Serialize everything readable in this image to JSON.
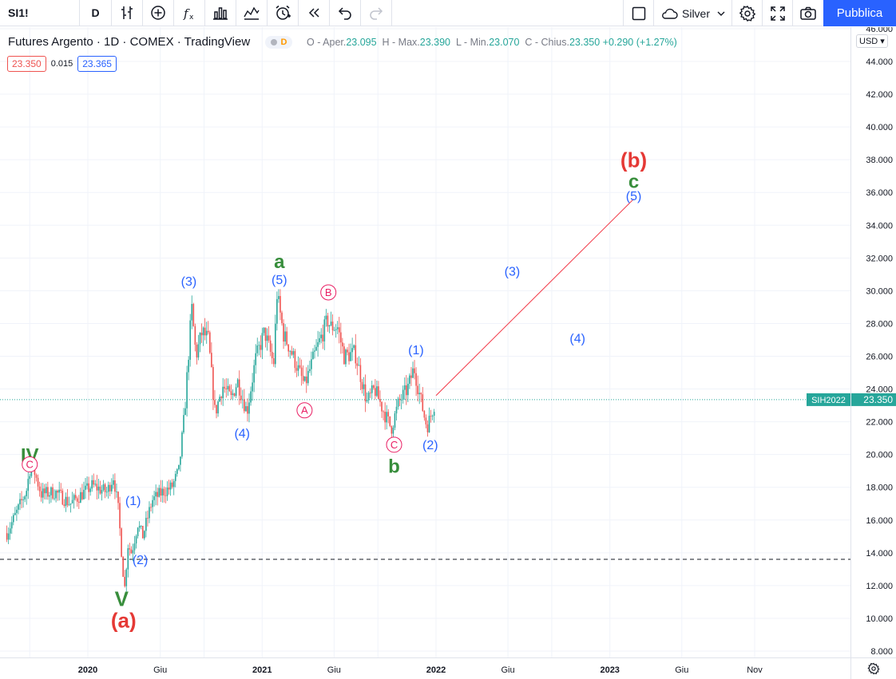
{
  "toolbar": {
    "symbol": "SI1!",
    "interval": "D",
    "icons": [
      "bar-style-icon",
      "add-indicator-plus-icon",
      "fx-indicators-icon",
      "templates-icon",
      "compare-icon",
      "alert-icon",
      "replay-icon",
      "undo-icon",
      "redo-icon"
    ],
    "layout_name": "Silver",
    "publish_label": "Pubblica"
  },
  "legend": {
    "title": "Futures Argento · 1D · COMEX · TradingView",
    "badge_letter": "D",
    "open_label": "O",
    "open_name": "Aper.",
    "open": "23.095",
    "high_label": "H",
    "high_name": "Max.",
    "high": "23.390",
    "low_label": "L",
    "low_name": "Min.",
    "low": "23.070",
    "close_label": "C",
    "close_name": "Chius.",
    "close": "23.350",
    "change": "+0.290 (+1.27%)",
    "bid": "23.350",
    "spread": "0.015",
    "ask": "23.365"
  },
  "price_axis": {
    "currency": "USD",
    "ticks": [
      "46.000",
      "44.000",
      "42.000",
      "40.000",
      "38.000",
      "36.000",
      "34.000",
      "32.000",
      "30.000",
      "28.000",
      "26.000",
      "24.000",
      "22.000",
      "20.000",
      "18.000",
      "16.000",
      "14.000",
      "12.000",
      "10.000",
      "8.000"
    ],
    "last_symbol": "SIH2022",
    "last_price": "23.350"
  },
  "time_axis": {
    "labels": [
      "2020",
      "Giu",
      "2021",
      "Giu",
      "2022",
      "Giu",
      "2023",
      "Giu",
      "Nov"
    ]
  },
  "colors": {
    "up": "#26a69a",
    "down": "#ef5350",
    "wave_blue": "#2962ff",
    "wave_green": "#388e3c",
    "wave_red": "#e53935",
    "wave_pink": "#e91e63",
    "projection": "#f23645"
  },
  "chart_data": {
    "type": "candlestick",
    "title": "Futures Argento · 1D · COMEX · TradingView",
    "ylim": [
      8,
      46
    ],
    "x_range": [
      "2019-07",
      "2023-12"
    ],
    "close_path": [
      [
        "2019-07-15",
        15.2
      ],
      [
        "2019-08-05",
        16.5
      ],
      [
        "2019-08-25",
        17.8
      ],
      [
        "2019-09-04",
        19.6
      ],
      [
        "2019-09-25",
        17.6
      ],
      [
        "2019-10-25",
        17.7
      ],
      [
        "2019-11-25",
        17.0
      ],
      [
        "2019-12-20",
        17.6
      ],
      [
        "2020-01-10",
        18.1
      ],
      [
        "2020-02-10",
        17.7
      ],
      [
        "2020-02-24",
        18.7
      ],
      [
        "2020-03-05",
        16.6
      ],
      [
        "2020-03-18",
        11.7
      ],
      [
        "2020-03-25",
        14.5
      ],
      [
        "2020-04-02",
        14.0
      ],
      [
        "2020-04-15",
        15.8
      ],
      [
        "2020-04-25",
        15.0
      ],
      [
        "2020-05-15",
        17.2
      ],
      [
        "2020-06-05",
        17.7
      ],
      [
        "2020-06-25",
        18.0
      ],
      [
        "2020-07-10",
        19.0
      ],
      [
        "2020-07-22",
        22.5
      ],
      [
        "2020-08-06",
        29.0
      ],
      [
        "2020-08-15",
        26.0
      ],
      [
        "2020-08-28",
        27.5
      ],
      [
        "2020-09-10",
        27.0
      ],
      [
        "2020-09-24",
        22.5
      ],
      [
        "2020-10-10",
        24.2
      ],
      [
        "2020-10-28",
        23.4
      ],
      [
        "2020-11-10",
        24.5
      ],
      [
        "2020-11-30",
        22.6
      ],
      [
        "2020-12-18",
        25.8
      ],
      [
        "2021-01-06",
        27.5
      ],
      [
        "2021-01-25",
        25.5
      ],
      [
        "2021-02-01",
        29.8
      ],
      [
        "2021-02-15",
        27.3
      ],
      [
        "2021-02-28",
        26.5
      ],
      [
        "2021-03-31",
        24.2
      ],
      [
        "2021-04-20",
        26.0
      ],
      [
        "2021-05-18",
        28.2
      ],
      [
        "2021-05-25",
        27.8
      ],
      [
        "2021-06-08",
        27.8
      ],
      [
        "2021-06-22",
        26.0
      ],
      [
        "2021-07-15",
        26.2
      ],
      [
        "2021-08-09",
        23.2
      ],
      [
        "2021-08-25",
        24.0
      ],
      [
        "2021-09-15",
        22.5
      ],
      [
        "2021-09-29",
        21.6
      ],
      [
        "2021-10-15",
        23.2
      ],
      [
        "2021-11-02",
        24.0
      ],
      [
        "2021-11-16",
        25.3
      ],
      [
        "2021-11-25",
        24.0
      ],
      [
        "2021-12-10",
        22.0
      ],
      [
        "2021-12-15",
        21.8
      ],
      [
        "2021-12-31",
        23.35
      ]
    ],
    "horizontal_line": 13.6,
    "last_price_line": 23.35,
    "projection_line": {
      "from": [
        "2022-01-01",
        23.6
      ],
      "to": [
        "2023-02-20",
        35.6
      ]
    },
    "wave_labels": [
      {
        "text": "IV",
        "date": "2019-09-01",
        "price": 20.0,
        "style": "green",
        "size": 24
      },
      {
        "text": "C",
        "date": "2019-09-01",
        "price": 19.4,
        "style": "circle-pink"
      },
      {
        "text": "(1)",
        "date": "2020-04-05",
        "price": 17.2,
        "style": "blue"
      },
      {
        "text": "(2)",
        "date": "2020-04-20",
        "price": 13.6,
        "style": "blue"
      },
      {
        "text": "V",
        "date": "2020-03-12",
        "price": 11.2,
        "style": "green",
        "size": 26
      },
      {
        "text": "(a)",
        "date": "2020-03-16",
        "price": 9.9,
        "style": "red-bold",
        "size": 26
      },
      {
        "text": "(3)",
        "date": "2020-07-31",
        "price": 30.6,
        "style": "blue"
      },
      {
        "text": "(4)",
        "date": "2020-11-20",
        "price": 21.3,
        "style": "blue"
      },
      {
        "text": "a",
        "date": "2021-02-06",
        "price": 31.8,
        "style": "green",
        "size": 24
      },
      {
        "text": "(5)",
        "date": "2021-02-06",
        "price": 30.7,
        "style": "blue"
      },
      {
        "text": "A",
        "date": "2021-03-31",
        "price": 22.7,
        "style": "circle-pink"
      },
      {
        "text": "B",
        "date": "2021-05-20",
        "price": 29.9,
        "style": "circle-pink"
      },
      {
        "text": "C",
        "date": "2021-10-05",
        "price": 20.6,
        "style": "circle-pink"
      },
      {
        "text": "b",
        "date": "2021-10-05",
        "price": 19.3,
        "style": "green",
        "size": 24
      },
      {
        "text": "(1)",
        "date": "2021-11-20",
        "price": 26.4,
        "style": "blue"
      },
      {
        "text": "(2)",
        "date": "2021-12-20",
        "price": 20.6,
        "style": "blue"
      },
      {
        "text": "(3)",
        "date": "2022-06-10",
        "price": 31.2,
        "style": "blue"
      },
      {
        "text": "(4)",
        "date": "2022-10-25",
        "price": 27.1,
        "style": "blue"
      },
      {
        "text": "(b)",
        "date": "2023-02-20",
        "price": 38.0,
        "style": "red-bold",
        "size": 26
      },
      {
        "text": "c",
        "date": "2023-02-20",
        "price": 36.7,
        "style": "green",
        "size": 24
      },
      {
        "text": "(5)",
        "date": "2023-02-20",
        "price": 35.8,
        "style": "blue"
      }
    ]
  }
}
